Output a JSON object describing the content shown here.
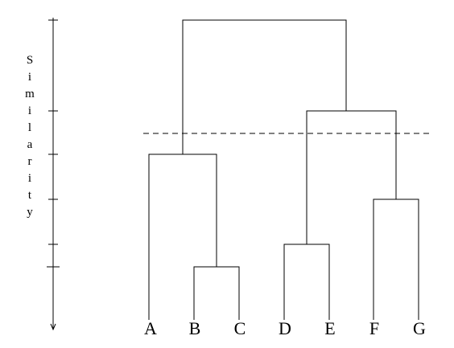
{
  "axis": {
    "label_letters": [
      "S",
      "i",
      "m",
      "i",
      "l",
      "a",
      "r",
      "i",
      "t",
      "y"
    ]
  },
  "leaves": [
    {
      "id": "A",
      "label": "A"
    },
    {
      "id": "B",
      "label": "B"
    },
    {
      "id": "C",
      "label": "C"
    },
    {
      "id": "D",
      "label": "D"
    },
    {
      "id": "E",
      "label": "E"
    },
    {
      "id": "F",
      "label": "F"
    },
    {
      "id": "G",
      "label": "G"
    }
  ],
  "merges": [
    {
      "id": "BC",
      "children": [
        "B",
        "C"
      ]
    },
    {
      "id": "DE",
      "children": [
        "D",
        "E"
      ]
    },
    {
      "id": "FG",
      "children": [
        "F",
        "G"
      ]
    },
    {
      "id": "ABC",
      "children": [
        "A",
        "BC"
      ]
    },
    {
      "id": "DEFG",
      "children": [
        "DE",
        "FG"
      ]
    },
    {
      "id": "ALL",
      "children": [
        "ABC",
        "DEFG"
      ]
    }
  ],
  "cut_line": "dashed",
  "colors": {
    "ink": "#000000",
    "background": "#ffffff"
  }
}
